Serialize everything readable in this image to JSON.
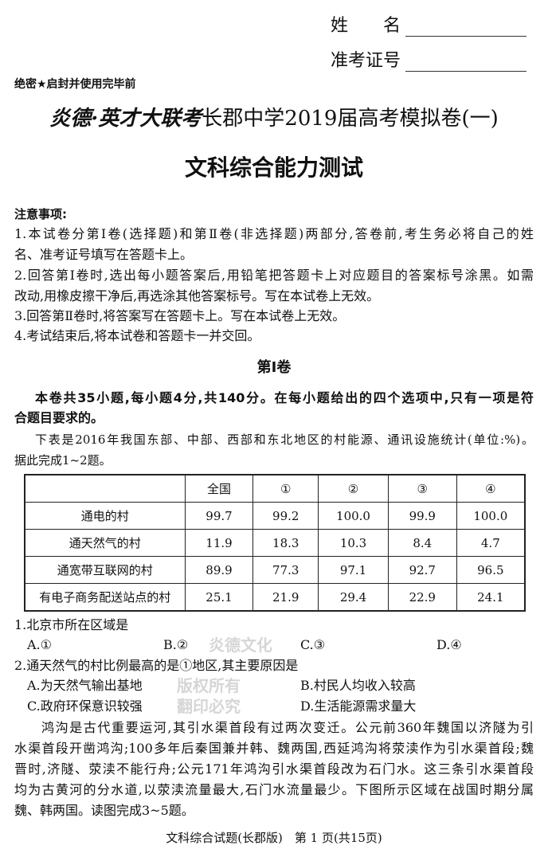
{
  "header": {
    "name_label": "姓　　名",
    "id_label": "准考证号",
    "secret": "绝密★启封并使用完毕前",
    "title_brand": "炎德·英才大联考",
    "title_rest": "长郡中学2019届高考模拟卷(一)",
    "subject": "文科综合能力测试"
  },
  "notes": {
    "heading": "注意事项:",
    "lines": [
      "1.本试卷分第Ⅰ卷(选择题)和第Ⅱ卷(非选择题)两部分,答卷前,考生务必将自己的姓",
      "名、准考证号填写在答题卡上。",
      "2.回答第Ⅰ卷时,选出每小题答案后,用铅笔把答题卡上对应题目的答案标号涂黑。如需",
      "改动,用橡皮擦干净后,再选涂其他答案标号。写在本试卷上无效。",
      "3.回答第Ⅱ卷时,将答案写在答题卡上。写在本试卷上无效。",
      "4.考试结束后,将本试卷和答题卡一并交回。"
    ]
  },
  "section": {
    "title": "第Ⅰ卷",
    "intro": [
      "本卷共35小题,每小题4分,共140分。在每小题给出的四个选项中,只有一项是符",
      "合题目要求的。"
    ],
    "lead": [
      "下表是2016年我国东部、中部、西部和东北地区的村能源、通讯设施统计(单位:%)。",
      "据此完成1~2题。"
    ]
  },
  "table": {
    "headers": [
      "",
      "全国",
      "①",
      "②",
      "③",
      "④"
    ],
    "rows": [
      [
        "通电的村",
        "99.7",
        "99.2",
        "100.0",
        "99.9",
        "100.0"
      ],
      [
        "通天然气的村",
        "11.9",
        "18.3",
        "10.3",
        "8.4",
        "4.7"
      ],
      [
        "通宽带互联网的村",
        "89.9",
        "77.3",
        "97.1",
        "92.7",
        "96.5"
      ],
      [
        "有电子商务配送站点的村",
        "25.1",
        "21.9",
        "29.4",
        "22.9",
        "24.1"
      ]
    ]
  },
  "questions": [
    {
      "stem": "1.北京市所在区域是",
      "options": [
        "A.①",
        "B.②",
        "C.③",
        "D.④"
      ]
    },
    {
      "stem": "2.通天然气的村比例最高的是①地区,其主要原因是",
      "options": [
        "A.为天然气输出基地",
        "B.村民人均收入较高",
        "C.政府环保意识较强",
        "D.生活能源需求量大"
      ]
    }
  ],
  "passage": [
    "鸿沟是古代重要运河,其引水渠首段有过两次变迁。公元前360年魏国以济隧为引",
    "水渠首段开凿鸿沟;100多年后秦国兼并韩、魏两国,西延鸿沟将荥渎作为引水渠首段;魏",
    "晋时,济隧、荥渎不能行舟;公元171年鸿沟引水渠首段改为石门水。这三条引水渠首段",
    "均为古黄河的分水道,以荥渎流量最大,石门水流量最少。下图所示区域在战国时期分属",
    "魏、韩两国。读图完成3~5题。"
  ],
  "watermark": [
    "炎德文化",
    "版权所有",
    "翻印必究"
  ],
  "footer": "文科综合试题(长郡版)　第 1 页(共15页)"
}
